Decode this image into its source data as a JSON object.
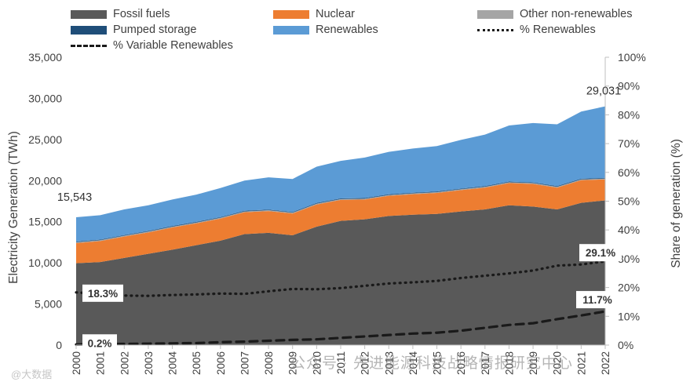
{
  "chart_data": {
    "type": "area",
    "years": [
      "2000",
      "2001",
      "2002",
      "2003",
      "2004",
      "2005",
      "2006",
      "2007",
      "2008",
      "2009",
      "2010",
      "2011",
      "2012",
      "2013",
      "2014",
      "2015",
      "2016",
      "2017",
      "2018",
      "2019",
      "2020",
      "2021",
      "2022"
    ],
    "stacked_series": [
      {
        "name": "Fossil fuels",
        "color": "#595959",
        "values": [
          9950,
          10100,
          10600,
          11100,
          11600,
          12150,
          12700,
          13500,
          13650,
          13350,
          14400,
          15100,
          15300,
          15700,
          15850,
          15950,
          16250,
          16500,
          17000,
          16850,
          16500,
          17300,
          17600
        ]
      },
      {
        "name": "Nuclear",
        "color": "#ED7D31",
        "values": [
          2450,
          2550,
          2600,
          2600,
          2700,
          2650,
          2680,
          2650,
          2650,
          2650,
          2700,
          2550,
          2400,
          2450,
          2500,
          2550,
          2600,
          2650,
          2700,
          2750,
          2650,
          2750,
          2550
        ]
      },
      {
        "name": "Other non-renewables",
        "color": "#A5A5A5",
        "values": [
          100,
          100,
          100,
          100,
          100,
          100,
          100,
          100,
          100,
          100,
          100,
          100,
          100,
          100,
          100,
          100,
          100,
          100,
          100,
          100,
          100,
          100,
          100
        ]
      },
      {
        "name": "Pumped storage",
        "color": "#1F4E79",
        "values": [
          80,
          80,
          80,
          80,
          80,
          80,
          80,
          80,
          80,
          80,
          80,
          80,
          80,
          80,
          80,
          80,
          80,
          80,
          80,
          80,
          80,
          80,
          80
        ]
      },
      {
        "name": "Renewables",
        "color": "#5B9BD5",
        "values": [
          2963,
          2970,
          3120,
          3120,
          3220,
          3320,
          3540,
          3670,
          3920,
          4020,
          4420,
          4570,
          4920,
          5170,
          5370,
          5520,
          5920,
          6270,
          6820,
          7220,
          7520,
          8170,
          8701
        ]
      }
    ],
    "line_series": [
      {
        "name": "% Renewables",
        "style": "dotted",
        "color": "#1a1a1a",
        "values": [
          18.3,
          17.8,
          17.2,
          17.1,
          17.4,
          17.6,
          17.9,
          17.8,
          18.7,
          19.5,
          19.4,
          19.8,
          20.6,
          21.4,
          21.8,
          22.3,
          23.3,
          24.1,
          24.9,
          25.9,
          27.6,
          28.0,
          29.1
        ]
      },
      {
        "name": "% Variable Renewables",
        "style": "dashed",
        "color": "#1a1a1a",
        "values": [
          0.2,
          0.3,
          0.4,
          0.5,
          0.6,
          0.7,
          1.0,
          1.2,
          1.5,
          1.8,
          2.0,
          2.5,
          3.0,
          3.5,
          4.0,
          4.3,
          5.0,
          6.0,
          7.0,
          7.6,
          9.0,
          10.3,
          11.7
        ]
      }
    ],
    "y_left": {
      "label": "Electricity Generation (TWh)",
      "min": 0,
      "max": 35000,
      "ticks": [
        "0",
        "5,000",
        "10,000",
        "15,000",
        "20,000",
        "25,000",
        "30,000",
        "35,000"
      ]
    },
    "y_right": {
      "label": "Share of generation (%)",
      "min": 0,
      "max": 100,
      "ticks": [
        "0%",
        "10%",
        "20%",
        "30%",
        "40%",
        "50%",
        "60%",
        "70%",
        "80%",
        "90%",
        "100%"
      ]
    },
    "annotations": {
      "start_total": "15,543",
      "end_total": "29,031",
      "re_start": "18.3%",
      "re_end": "29.1%",
      "vre_start": "0.2%",
      "vre_end": "11.7%"
    },
    "legend_position": "top",
    "grid": false
  },
  "legend": {
    "fossil": "Fossil fuels",
    "nuclear": "Nuclear",
    "other": "Other non-renewables",
    "pumped": "Pumped storage",
    "renewables": "Renewables",
    "pct_re": "% Renewables",
    "pct_vre": "% Variable Renewables"
  },
  "watermark": "公众号 · 先进能源科技战略情报研究中心",
  "watermark_small": "@大数据"
}
